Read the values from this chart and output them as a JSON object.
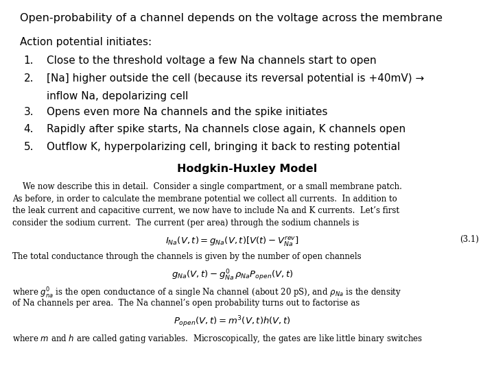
{
  "title": "Open-probability of a channel depends on the voltage across the membrane",
  "background_color": "#ffffff",
  "intro_label": "Action potential initiates:",
  "items": [
    "Close to the threshold voltage a few Na channels start to open",
    "[Na] higher outside the cell (because its reversal potential is +40mV) →\n     inflow Na, depolarizing cell",
    "Opens even more Na channels and the spike initiates",
    "Rapidly after spike starts, Na channels close again, K channels open",
    "Outflow K, hyperpolarizing cell, bringing it back to resting potential"
  ],
  "section_title": "Hodgkin-Huxley Model",
  "title_fontsize": 11.5,
  "intro_fontsize": 11.0,
  "item_fontsize": 11.0,
  "section_title_fontsize": 11.5,
  "body_fontsize": 8.5,
  "body_text_line1": "    We now describe this in detail.  Consider a single compartment, or a small membrane patch.",
  "body_text_line2": "As before, in order to calculate the membrane potential we collect all currents.  In addition to",
  "body_text_line3": "the leak current and capacitive current, we now have to include Na and K currents.  Let’s first",
  "body_text_line4": "consider the sodium current.  The current (per area) through the sodium channels is",
  "eq1": "$I_{Na}(V,t) = g_{Na}(V,t)[V(t) - V_{Na}^{rev}]$",
  "eq1_label": "(3.1)",
  "body_text_line5": "The total conductance through the channels is given by the number of open channels",
  "eq2": "$g_{Na}(V,t) - g_{Na}^{0}\\, \\rho_{Na} P_{open}(V,t)$",
  "body_text_line6": "where $g^{0}_{na}$ is the open conductance of a single Na channel (about 20 pS), and $\\rho_{Na}$ is the density",
  "body_text_line7": "of Na channels per area.  The Na channel’s open probability turns out to factorise as",
  "eq3": "$P_{open}(V,t) = m^{3}(V,t)h(V,t)$",
  "body_text_line8": "where $m$ and $h$ are called gating variables.  Microscopically, the gates are like little binary switches"
}
